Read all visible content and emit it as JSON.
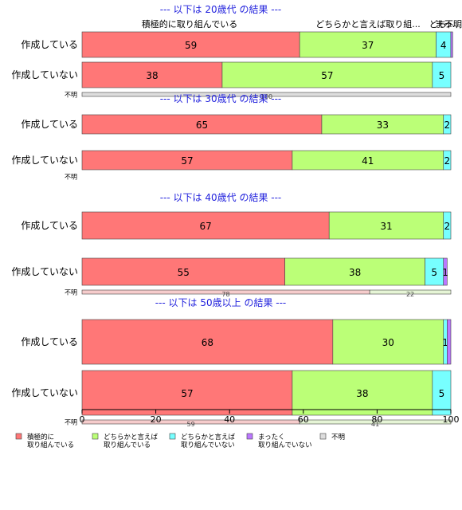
{
  "chart_data": {
    "type": "bar",
    "orientation": "horizontal",
    "stacked": true,
    "xlim": [
      0,
      100
    ],
    "x_ticks": [
      "0",
      "20",
      "40",
      "60",
      "80",
      "100"
    ],
    "categories": [
      "作成している",
      "作成していない",
      "不明"
    ],
    "legend": {
      "placement": "bottom",
      "entries": [
        {
          "label": "積極的に\n取り組んでいる",
          "color": "#ff7777"
        },
        {
          "label": "どちらかと言えば\n取り組んでいる",
          "color": "#bbff77"
        },
        {
          "label": "どちらかと言えば\n取り組んでいない",
          "color": "#77ffff"
        },
        {
          "label": "まったく\n取り組んでいない",
          "color": "#bb77ff"
        },
        {
          "label": "不明",
          "color": "#dddddd"
        }
      ]
    },
    "top_labels": {
      "s1": "積極的に取り組んでいる",
      "s2": "どちらかと言えば取り組...",
      "s3": "どち...",
      "s4": "まっ...",
      "s5": "不明"
    },
    "panels": [
      {
        "title": "--- 以下は 20歳代 の結果 ---",
        "bars": [
          {
            "label": "作成している",
            "values": [
              59,
              37,
              4,
              0.5,
              0
            ],
            "labels": [
              "59",
              "37",
              "4",
              "",
              ""
            ]
          },
          {
            "label": "作成していない",
            "values": [
              38,
              57,
              5,
              0,
              0
            ],
            "labels": [
              "38",
              "57",
              "5",
              "",
              ""
            ]
          },
          {
            "label": "不明",
            "values": [
              0,
              0,
              0,
              0,
              100
            ],
            "labels": [
              "",
              "",
              "",
              "",
              "100"
            ]
          }
        ]
      },
      {
        "title": "--- 以下は 30歳代 の結果 ---",
        "bars": [
          {
            "label": "作成している",
            "values": [
              65,
              33,
              2,
              0,
              0
            ],
            "labels": [
              "65",
              "33",
              "2",
              "",
              ""
            ]
          },
          {
            "label": "作成していない",
            "values": [
              57,
              41,
              2,
              0,
              0
            ],
            "labels": [
              "57",
              "41",
              "2",
              "",
              ""
            ]
          },
          {
            "label": "不明",
            "values": [
              0,
              0,
              0,
              0,
              0
            ],
            "labels": [
              "",
              "",
              "",
              "",
              ""
            ]
          }
        ]
      },
      {
        "title": "--- 以下は 40歳代 の結果 ---",
        "bars": [
          {
            "label": "作成している",
            "values": [
              67,
              31,
              2,
              0,
              0
            ],
            "labels": [
              "67",
              "31",
              "2",
              "",
              ""
            ]
          },
          {
            "label": "作成していない",
            "values": [
              55,
              38,
              5,
              1,
              0
            ],
            "labels": [
              "55",
              "38",
              "5",
              "1",
              ""
            ]
          },
          {
            "label": "不明",
            "values": [
              78,
              22,
              0,
              0,
              0
            ],
            "labels": [
              "78",
              "22",
              "",
              "",
              ""
            ]
          }
        ]
      },
      {
        "title": "--- 以下は 50歳以上 の結果 ---",
        "bars": [
          {
            "label": "作成している",
            "values": [
              68,
              30,
              1,
              1,
              0
            ],
            "labels": [
              "68",
              "30",
              "1",
              "",
              ""
            ]
          },
          {
            "label": "作成していない",
            "values": [
              57,
              38,
              5,
              0,
              0
            ],
            "labels": [
              "57",
              "38",
              "5",
              "",
              ""
            ]
          },
          {
            "label": "不明",
            "values": [
              59,
              41,
              0,
              0,
              0
            ],
            "labels": [
              "59",
              "41",
              "",
              "",
              ""
            ]
          }
        ]
      }
    ]
  }
}
